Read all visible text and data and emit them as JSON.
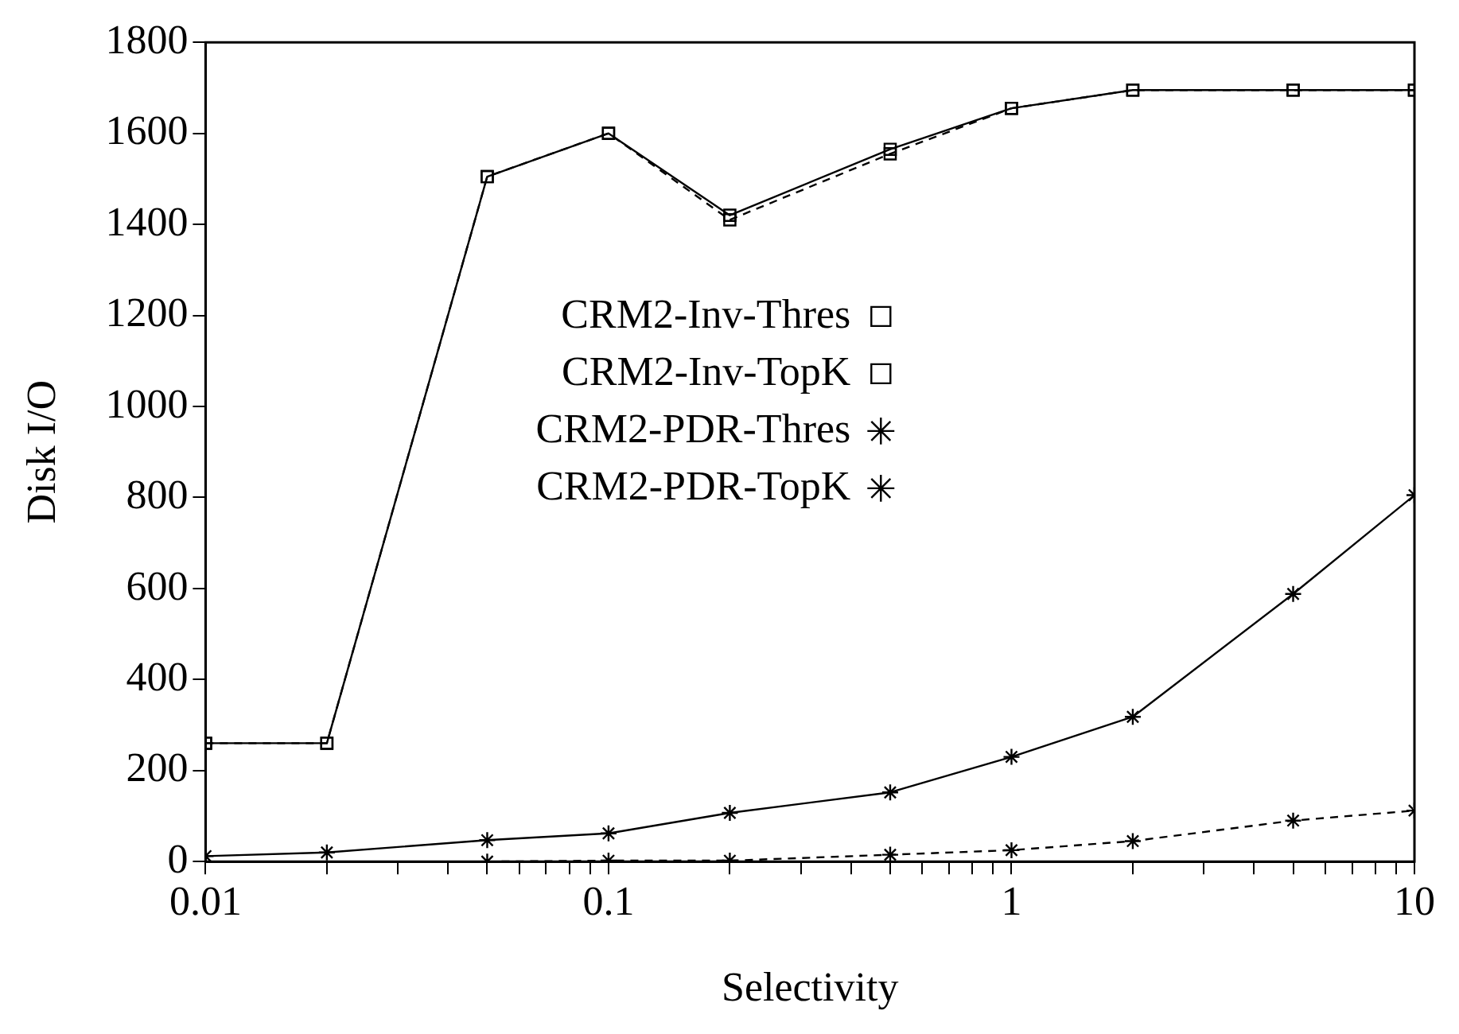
{
  "chart_data": {
    "type": "line",
    "xlabel": "Selectivity",
    "ylabel": "Disk I/O",
    "log": "x",
    "xlim": [
      0.01,
      10
    ],
    "ylim": [
      0,
      1800
    ],
    "xticks": [
      {
        "value": 0.01,
        "label": "0.01"
      },
      {
        "value": 0.02,
        "label": null
      },
      {
        "value": 0.03,
        "label": null
      },
      {
        "value": 0.04,
        "label": null
      },
      {
        "value": 0.05,
        "label": null
      },
      {
        "value": 0.06,
        "label": null
      },
      {
        "value": 0.07,
        "label": null
      },
      {
        "value": 0.08,
        "label": null
      },
      {
        "value": 0.09,
        "label": null
      },
      {
        "value": 0.1,
        "label": "0.1"
      },
      {
        "value": 0.2,
        "label": null
      },
      {
        "value": 0.3,
        "label": null
      },
      {
        "value": 0.4,
        "label": null
      },
      {
        "value": 0.5,
        "label": null
      },
      {
        "value": 0.6,
        "label": null
      },
      {
        "value": 0.7,
        "label": null
      },
      {
        "value": 0.8,
        "label": null
      },
      {
        "value": 0.9,
        "label": null
      },
      {
        "value": 1,
        "label": "1"
      },
      {
        "value": 2,
        "label": null
      },
      {
        "value": 3,
        "label": null
      },
      {
        "value": 4,
        "label": null
      },
      {
        "value": 5,
        "label": null
      },
      {
        "value": 6,
        "label": null
      },
      {
        "value": 7,
        "label": null
      },
      {
        "value": 8,
        "label": null
      },
      {
        "value": 9,
        "label": null
      },
      {
        "value": 10,
        "label": "10"
      }
    ],
    "yticks": [
      0,
      200,
      400,
      600,
      800,
      1000,
      1200,
      1400,
      1600,
      1800
    ],
    "grid": false,
    "legend": "center",
    "series": [
      {
        "name": "CRM2-Inv-Thres",
        "color": "#000000",
        "marker": "square",
        "line_style": "dashed",
        "x": [
          0.01,
          0.02,
          0.05,
          0.1,
          0.2,
          0.5,
          1,
          2,
          5,
          10
        ],
        "values": [
          260,
          260,
          1505,
          1600,
          1410,
          1555,
          1655,
          1695,
          1695,
          1695
        ]
      },
      {
        "name": "CRM2-Inv-TopK",
        "color": "#000000",
        "marker": "square",
        "line_style": "solid",
        "x": [
          0.01,
          0.02,
          0.05,
          0.1,
          0.2,
          0.5,
          1,
          2,
          5,
          10
        ],
        "values": [
          260,
          260,
          1505,
          1600,
          1420,
          1565,
          1655,
          1695,
          1695,
          1695
        ]
      },
      {
        "name": "CRM2-PDR-Thres",
        "color": "#000000",
        "marker": "cross",
        "line_style": "dashed",
        "x": [
          0.05,
          0.1,
          0.2,
          0.5,
          1,
          2,
          5,
          10
        ],
        "values": [
          0,
          2,
          2,
          15,
          25,
          45,
          90,
          112
        ]
      },
      {
        "name": "CRM2-PDR-TopK",
        "color": "#000000",
        "marker": "cross",
        "line_style": "solid",
        "x": [
          0.01,
          0.02,
          0.05,
          0.1,
          0.2,
          0.5,
          1,
          2,
          5,
          10
        ],
        "values": [
          12,
          20,
          47,
          62,
          107,
          152,
          230,
          318,
          588,
          805
        ]
      }
    ]
  }
}
